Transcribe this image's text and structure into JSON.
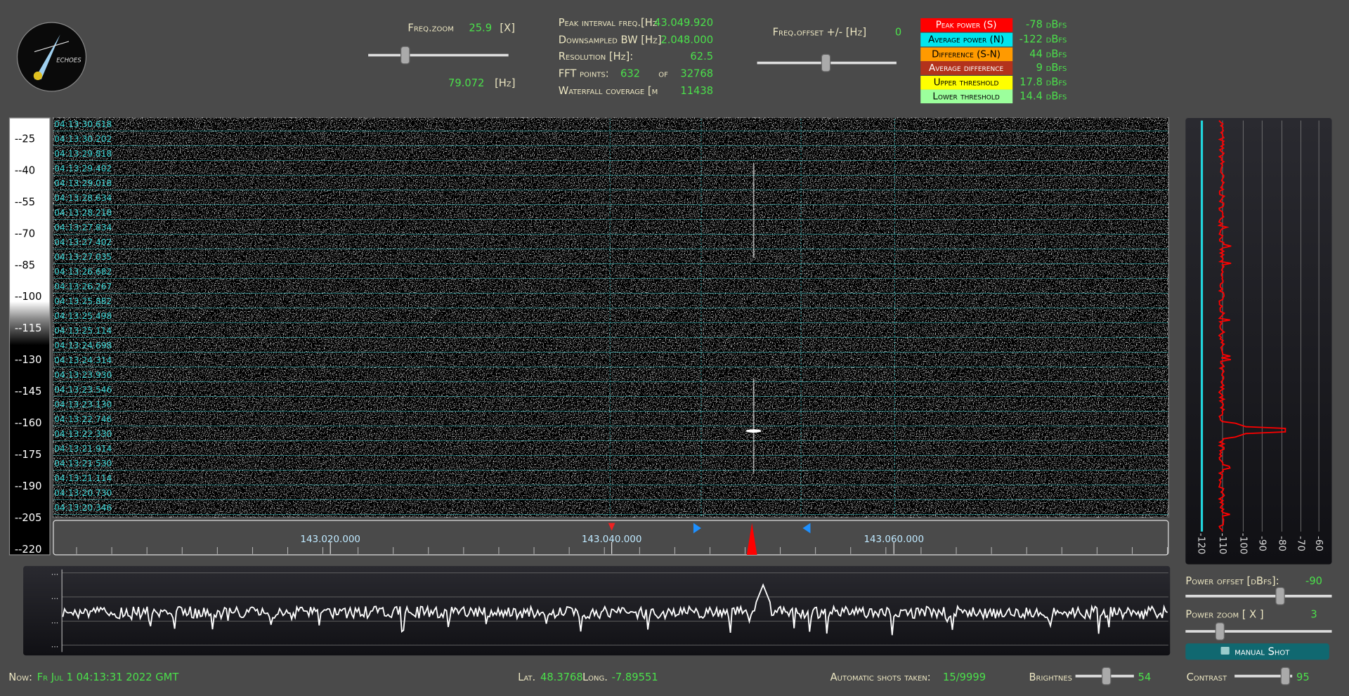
{
  "logo": {
    "text": "ECHOES"
  },
  "freq_zoom": {
    "label": "Freq.zoom",
    "value": "25.9",
    "unit": "[X]",
    "hz_value": "79.072",
    "hz_unit": "[Hz]"
  },
  "info": [
    {
      "label": "Peak interval freq.[Hz",
      "value": "43.049.920"
    },
    {
      "label": "Downsampled BW  [Hz]",
      "value": "2.048.000"
    },
    {
      "label": "Resolution [Hz]:",
      "value": "62.5"
    },
    {
      "label": "FFT points:",
      "value": "632",
      "sep": "of",
      "total": "32768"
    },
    {
      "label": "Waterfall coverage [m",
      "value": "11438"
    }
  ],
  "freq_offset": {
    "label": "Freq.offset +/- [Hz]",
    "value": "0"
  },
  "legend": [
    {
      "label": "Peak power (S)",
      "value": "-78 dBfs"
    },
    {
      "label": "Average power (N)",
      "value": "-122 dBfs"
    },
    {
      "label": "Difference (S-N)",
      "value": "44 dBfs"
    },
    {
      "label": "Average difference",
      "value": "9 dBfs"
    },
    {
      "label": "Upper threshold",
      "value": "17.8 dBfs"
    },
    {
      "label": "Lower threshold",
      "value": "14.4 dBfs"
    }
  ],
  "scale_labels": [
    "--25",
    "--40",
    "--55",
    "--70",
    "--85",
    "--100",
    "--115",
    "--130",
    "--145",
    "--160",
    "--175",
    "--190",
    "--205",
    "--220"
  ],
  "timestamps": [
    "04:13:30.618",
    "04:13:30.202",
    "04:13:29.818",
    "04:13:29.402",
    "04:13:29.018",
    "04:13:28.634",
    "04:13:28.218",
    "04:13:27.834",
    "04:13:27.402",
    "04:13:27.035",
    "04:13:26.682",
    "04:13:26.267",
    "04:13:25.882",
    "04:13:25.498",
    "04:13:25.114",
    "04:13:24.698",
    "04:13:24.314",
    "04:13:23.930",
    "04:13:23.546",
    "04:13:23.130",
    "04:13:22.746",
    "04:13:22.330",
    "04:13:21.914",
    "04:13:21.530",
    "04:13:21.114",
    "04:13:20.730",
    "04:13:20.346"
  ],
  "freq_axis": [
    "143.020.000",
    "143.040.000",
    "143.060.000"
  ],
  "power_axis": [
    "-120",
    "-110",
    "-100",
    "-90",
    "-80",
    "-70",
    "-60"
  ],
  "bottom_labels": [
    "...",
    "...",
    "...",
    "..."
  ],
  "power_offset": {
    "label": "Power offset [dBfs]:",
    "value": "-90"
  },
  "power_zoom": {
    "label": "Power zoom  [ X ]",
    "value": "3"
  },
  "button": "manual Shot",
  "footer": {
    "now_label": "Now:",
    "now": "Fr Jul 1 04:13:31 2022 GMT",
    "lat_label": "Lat.",
    "lat": "48.3768",
    "long_label": "Long.",
    "long": "-7.89551",
    "shots_label": "Automatic shots taken:",
    "shots": "15/9999",
    "brightness_label": "Brightnes",
    "brightness": "54",
    "contrast_label": "Contrast",
    "contrast": "95"
  }
}
